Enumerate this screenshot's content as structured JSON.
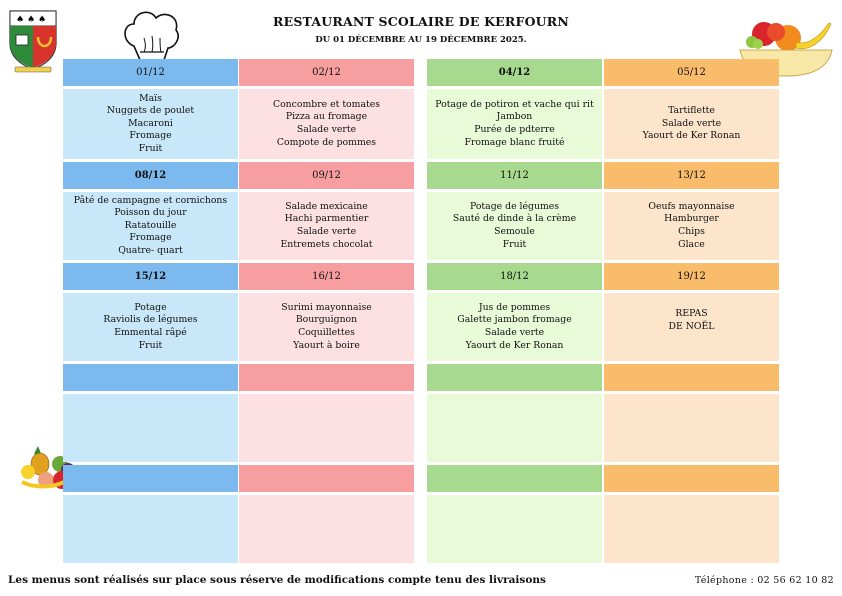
{
  "header": {
    "title": "RESTAURANT SCOLAIRE DE KERFOURN",
    "subtitle": "DU 01 DÉCEMBRE AU 19 DÉCEMBRE 2025."
  },
  "colors": {
    "col1_header": "#7cb9ef",
    "col1_body": "#c8e8fa",
    "col2_header": "#f79ea0",
    "col2_body": "#fde0e2",
    "col3_header": "#a7d98f",
    "col3_body": "#e9fad8",
    "col4_header": "#f9bc6b",
    "col4_body": "#fde5cc"
  },
  "icons": [
    "coat-of-arms-icon",
    "chef-hat-icon",
    "fruit-bowl-icon",
    "fruit-pile-icon"
  ],
  "menu": {
    "columns": [
      {
        "days": [
          {
            "date": "01/12",
            "items": [
              "Maïs",
              "Nuggets de poulet",
              "Macaroni",
              "Fromage",
              "Fruit"
            ]
          },
          {
            "date": "08/12",
            "items": [
              "Pâté de campagne et cornichons",
              "Poisson du jour",
              "Ratatouille",
              "Fromage",
              "Quatre- quart"
            ]
          },
          {
            "date": "15/12",
            "items": [
              "Potage",
              "Raviolis de légumes",
              "Emmental râpé",
              "Fruit"
            ]
          },
          {
            "date": "",
            "items": []
          },
          {
            "date": "",
            "items": []
          }
        ]
      },
      {
        "days": [
          {
            "date": "02/12",
            "items": [
              "Concombre et tomates",
              "Pizza au fromage",
              "Salade verte",
              "Compote de pommes"
            ]
          },
          {
            "date": "09/12",
            "items": [
              "Salade mexicaine",
              "Hachi parmentier",
              "Salade verte",
              "Entremets chocolat"
            ]
          },
          {
            "date": "16/12",
            "items": [
              "Surimi mayonnaise",
              "Bourguignon",
              "Coquillettes",
              "Yaourt à boire"
            ]
          },
          {
            "date": "",
            "items": []
          },
          {
            "date": "",
            "items": []
          }
        ]
      },
      {
        "days": [
          {
            "date": "04/12",
            "items": [
              "Potage de potiron et vache qui rit",
              "Jambon",
              "Purée de pdterre",
              "Fromage blanc fruité"
            ]
          },
          {
            "date": "11/12",
            "items": [
              "Potage de légumes",
              "Sauté de dinde à la crème",
              "Semoule",
              "Fruit"
            ]
          },
          {
            "date": "18/12",
            "items": [
              "Jus de pommes",
              "Galette jambon fromage",
              "Salade verte",
              "Yaourt de Ker Ronan"
            ]
          },
          {
            "date": "",
            "items": []
          },
          {
            "date": "",
            "items": []
          }
        ]
      },
      {
        "days": [
          {
            "date": "05/12",
            "items": [
              "Tartiflette",
              "Salade verte",
              "Yaourt de Ker Ronan"
            ]
          },
          {
            "date": "13/12",
            "items": [
              "Oeufs mayonnaise",
              "Hamburger",
              "Chips",
              "Glace"
            ]
          },
          {
            "date": "19/12",
            "items": [
              "REPAS",
              "DE NOËL"
            ]
          },
          {
            "date": "",
            "items": []
          },
          {
            "date": "",
            "items": []
          }
        ]
      }
    ]
  },
  "footer": {
    "note": "Les menus sont réalisés sur place sous réserve de modifications compte tenu des livraisons",
    "phone": "Téléphone  : 02 56 62 10 82"
  }
}
